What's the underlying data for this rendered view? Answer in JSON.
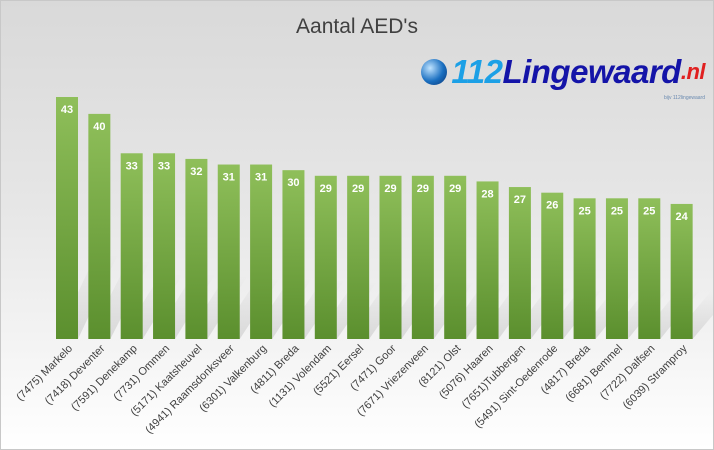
{
  "chart_data": {
    "type": "bar",
    "title": "Aantal AED's",
    "xlabel": "",
    "ylabel": "",
    "ylim": [
      0,
      43
    ],
    "grid": false,
    "categories": [
      "(7475) Markelo",
      "(7418) Deventer",
      "(7591) Denekamp",
      "(7731) Ommen",
      "(5171) Kaatsheuvel",
      "(4941) Raamsdonksveer",
      "(6301) Valkenburg",
      "(4811) Breda",
      "(1131) Volendam",
      "(5521) Eersel",
      "(7471) Goor",
      "(7671) Vriezenveen",
      "(8121) Olst",
      "(5076) Haaren",
      "(7651)Tubbergen",
      "(5491) Sint-Oedenrode",
      "(4817) Breda",
      "(6681) Bemmel",
      "(7722) Dalfsen",
      "(6039) Stramproy"
    ],
    "values": [
      43,
      40,
      33,
      33,
      32,
      31,
      31,
      30,
      29,
      29,
      29,
      29,
      29,
      28,
      27,
      26,
      25,
      25,
      25,
      24
    ],
    "colors": {
      "bar_top": "#8fbf5a",
      "bar_bottom": "#5b8f2e",
      "label": "#ffffff"
    }
  },
  "watermark": {
    "globe": "globe-icon",
    "number": "112",
    "name": "Lingewaard",
    "tld": ".nl",
    "credit": "bijv 112lingewaard"
  }
}
